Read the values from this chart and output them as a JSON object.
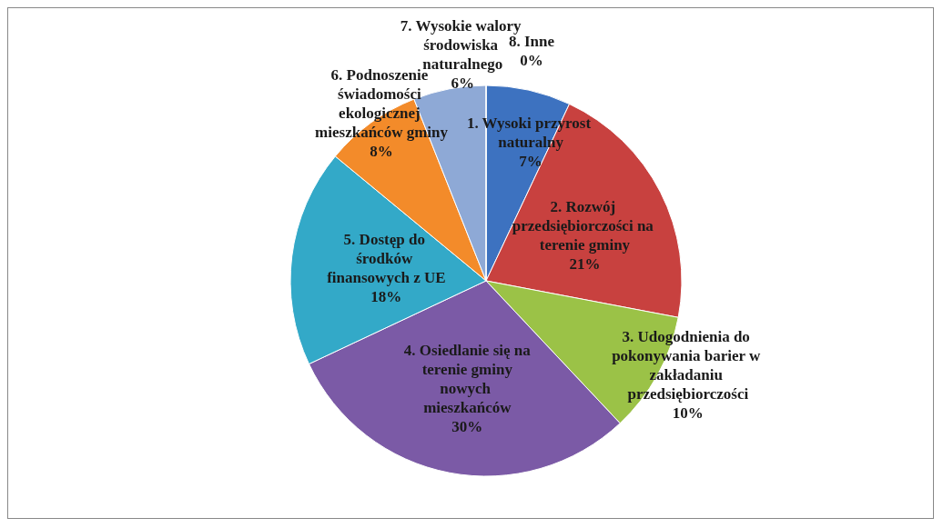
{
  "chart_data": {
    "type": "pie",
    "categories": [
      "1. Wysoki przyrost naturalny",
      "2. Rozwój przedsiębiorczości na terenie gminy",
      "3. Udogodnienia do pokonywania barier w zakładaniu przedsiębiorczości",
      "4. Osiedlanie się na terenie gminy nowych mieszkańców",
      "5. Dostęp do środków finansowych z UE",
      "6. Podnoszenie świadomości ekologicznej mieszkańców gminy",
      "7. Wysokie walory środowiska naturalnego",
      "8. Inne"
    ],
    "values": [
      7,
      21,
      10,
      30,
      18,
      8,
      6,
      0
    ],
    "colors": [
      "#3d72c0",
      "#c8413f",
      "#9bc247",
      "#7b5aa6",
      "#33a9c8",
      "#f38b2a",
      "#8ea9d6",
      "#a6a6a6"
    ],
    "value_labels": [
      "7%",
      "21%",
      "10%",
      "30%",
      "18%",
      "8%",
      "6%",
      "0%"
    ],
    "legend": false
  }
}
